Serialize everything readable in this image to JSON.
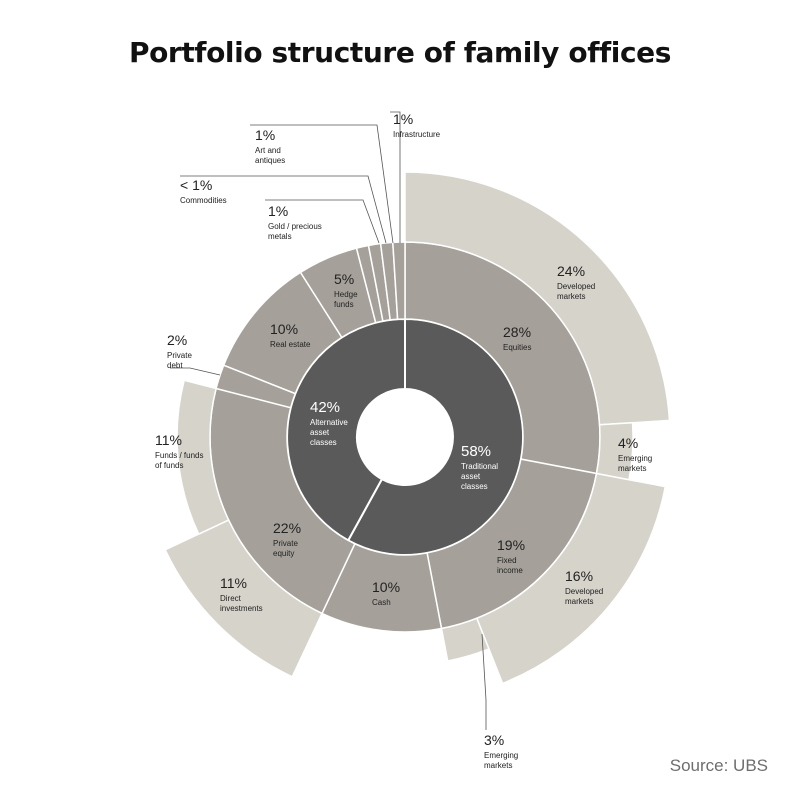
{
  "chart_data": {
    "type": "sunburst",
    "title": "Portfolio structure of family offices",
    "source": "Source: UBS",
    "colors": {
      "inner": "#5a5a5a",
      "middle": "#a5a19a",
      "outer": "#d5d3ca",
      "stroke": "#ffffff",
      "leader": "#555555"
    },
    "inner": [
      {
        "pct": "58%",
        "lines": [
          "Traditional",
          "asset",
          "classes"
        ],
        "value": 58
      },
      {
        "pct": "42%",
        "lines": [
          "Alternative",
          "asset",
          "classes"
        ],
        "value": 42
      }
    ],
    "middle": [
      {
        "pct": "28%",
        "lines": [
          "Equities"
        ],
        "value": 28
      },
      {
        "pct": "19%",
        "lines": [
          "Fixed",
          "income"
        ],
        "value": 19
      },
      {
        "pct": "10%",
        "lines": [
          "Cash"
        ],
        "value": 10
      },
      {
        "pct": "22%",
        "lines": [
          "Private",
          "equity"
        ],
        "value": 22
      },
      {
        "pct": "2%",
        "lines": [
          "Private",
          "debt"
        ],
        "value": 2
      },
      {
        "pct": "10%",
        "lines": [
          "Real estate"
        ],
        "value": 10
      },
      {
        "pct": "5%",
        "lines": [
          "Hedge",
          "funds"
        ],
        "value": 5
      },
      {
        "pct": "1%",
        "lines": [
          "Gold / precious",
          "metals"
        ],
        "value": 1
      },
      {
        "pct": "< 1%",
        "lines": [
          "Commodities"
        ],
        "value": 1
      },
      {
        "pct": "1%",
        "lines": [
          "Art and",
          "antiques"
        ],
        "value": 1
      },
      {
        "pct": "1%",
        "lines": [
          "Infrastructure"
        ],
        "value": 1
      }
    ],
    "outer": [
      {
        "pct": "24%",
        "lines": [
          "Developed",
          "markets"
        ],
        "value": 24,
        "parent": "Equities"
      },
      {
        "pct": "4%",
        "lines": [
          "Emerging",
          "markets"
        ],
        "value": 4,
        "parent": "Equities"
      },
      {
        "pct": "16%",
        "lines": [
          "Developed",
          "markets"
        ],
        "value": 16,
        "parent": "Fixed income"
      },
      {
        "pct": "3%",
        "lines": [
          "Emerging",
          "markets"
        ],
        "value": 3,
        "parent": "Fixed income"
      },
      {
        "pct": "11%",
        "lines": [
          "Direct",
          "investments"
        ],
        "value": 11,
        "parent": "Private equity"
      },
      {
        "pct": "11%",
        "lines": [
          "Funds / funds",
          "of funds"
        ],
        "value": 11,
        "parent": "Private equity"
      }
    ]
  }
}
